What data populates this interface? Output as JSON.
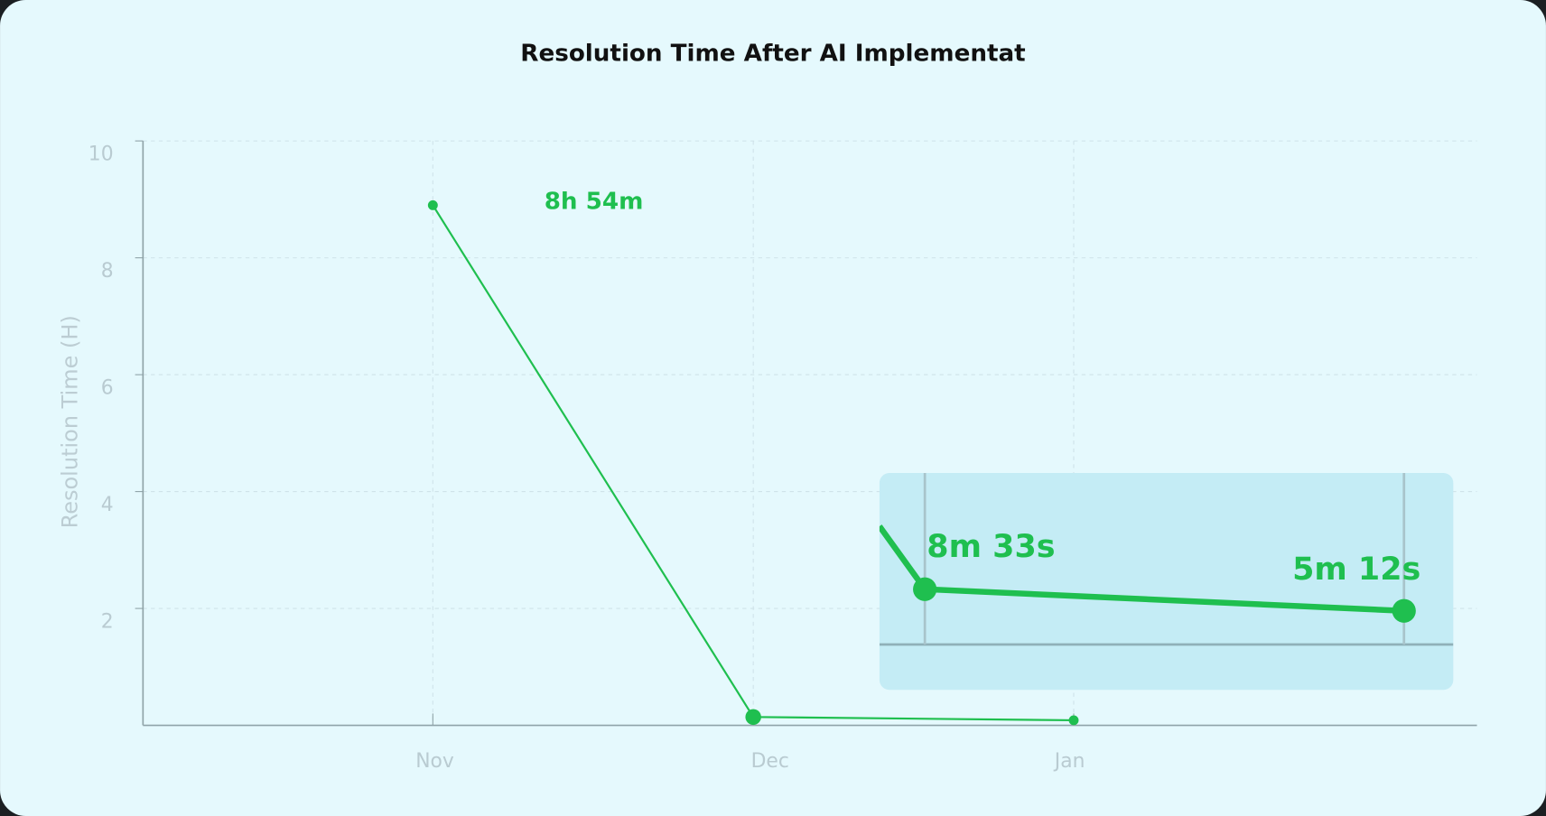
{
  "chart_data": {
    "type": "line",
    "title": "Resolution Time After AI Implementat",
    "y_label": "Resolution Time (H)",
    "categories": [
      "Nov",
      "Dec",
      "Jan"
    ],
    "values": [
      8.9,
      0.1425,
      0.0867
    ],
    "value_labels": [
      "8h 54m",
      "8m 33s",
      "5m 12s"
    ],
    "color": "#1fbf4f",
    "ylim": [
      0,
      10
    ],
    "yticks": [
      2,
      4,
      6,
      8,
      10
    ],
    "grid": true
  }
}
